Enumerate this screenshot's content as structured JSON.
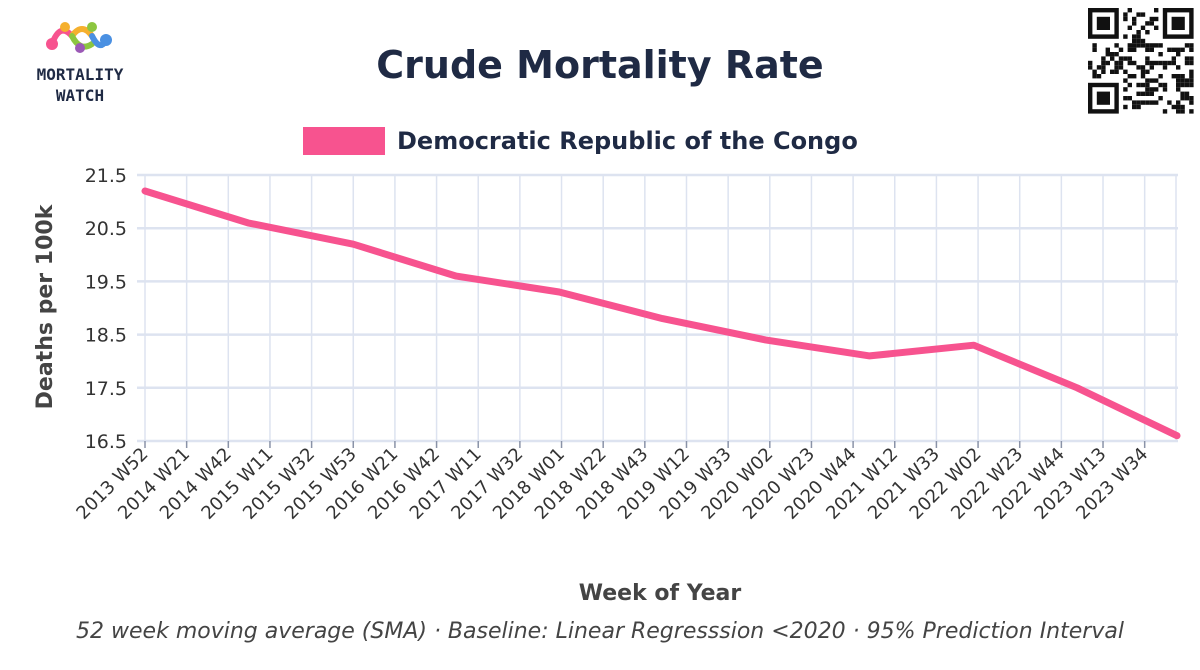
{
  "logo": {
    "line1": "MORTALITY",
    "line2": "WATCH"
  },
  "colors": {
    "series": "#f7538f",
    "grid": "#dde3f0",
    "title": "#1f2a44"
  },
  "footnote": "52 week moving average (SMA) · Baseline: Linear Regresssion <2020 · 95% Prediction Interval",
  "chart_data": {
    "type": "line",
    "title": "Crude Mortality Rate",
    "xlabel": "Week of Year",
    "ylabel": "Deaths per 100k",
    "ylim": [
      16.5,
      21.5
    ],
    "y_ticks": [
      "21.5",
      "20.5",
      "19.5",
      "18.5",
      "17.5",
      "16.5"
    ],
    "x_tick_labels": [
      "2013 W52",
      "2014 W21",
      "2014 W42",
      "2015 W11",
      "2015 W32",
      "2015 W53",
      "2016 W21",
      "2016 W42",
      "2017 W11",
      "2017 W32",
      "2018 W01",
      "2018 W22",
      "2018 W43",
      "2019 W12",
      "2019 W33",
      "2020 W02",
      "2020 W23",
      "2020 W44",
      "2021 W12",
      "2021 W33",
      "2022 W02",
      "2022 W23",
      "2022 W44",
      "2023 W13",
      "2023 W34"
    ],
    "grid": true,
    "legend_position": "top-center",
    "series": [
      {
        "name": "Democratic Republic of the Congo",
        "color": "#f7538f",
        "points": [
          [
            "2013 W52",
            21.2
          ],
          [
            "2014 W52",
            20.6
          ],
          [
            "2015 W53",
            20.2
          ],
          [
            "2016 W52",
            19.6
          ],
          [
            "2017 W52",
            19.3
          ],
          [
            "2018 W52",
            18.8
          ],
          [
            "2019 W52",
            18.4
          ],
          [
            "2020 W52",
            18.1
          ],
          [
            "2021 W52",
            18.3
          ],
          [
            "2022 W52",
            17.5
          ],
          [
            "2023 W52",
            16.6
          ]
        ]
      }
    ]
  }
}
